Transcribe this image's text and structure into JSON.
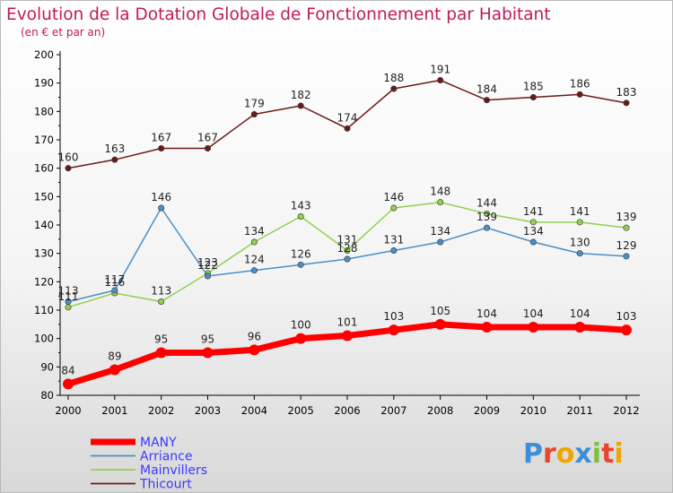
{
  "chart_data": {
    "type": "line",
    "title": "Evolution de la Dotation Globale de Fonctionnement par Habitant",
    "subtitle": "(en € et par an)",
    "x": [
      "2000",
      "2001",
      "2002",
      "2003",
      "2004",
      "2005",
      "2006",
      "2007",
      "2008",
      "2009",
      "2010",
      "2011",
      "2012"
    ],
    "ylim": [
      80,
      200
    ],
    "yticks": [
      80,
      90,
      100,
      110,
      120,
      130,
      140,
      150,
      160,
      170,
      180,
      190,
      200
    ],
    "grid": false,
    "legend_position": "bottom-left",
    "series": [
      {
        "name": "Thicourt",
        "color": "#6b1a1a",
        "width": 1.5,
        "values": [
          160,
          163,
          167,
          167,
          179,
          182,
          174,
          188,
          191,
          184,
          185,
          186,
          183
        ]
      },
      {
        "name": "Mainvillers",
        "color": "#8fd14f",
        "width": 1.5,
        "values": [
          111,
          116,
          113,
          123,
          134,
          143,
          131,
          146,
          148,
          144,
          141,
          141,
          139
        ]
      },
      {
        "name": "Arriance",
        "color": "#4a90c8",
        "width": 1.5,
        "values": [
          113,
          117,
          146,
          122,
          124,
          126,
          128,
          131,
          134,
          139,
          134,
          130,
          129
        ]
      },
      {
        "name": "MANY",
        "color": "#ff0000",
        "width": 7,
        "values": [
          84,
          89,
          95,
          95,
          96,
          100,
          101,
          103,
          105,
          104,
          104,
          104,
          103
        ]
      }
    ],
    "legend": [
      "MANY",
      "Arriance",
      "Mainvillers",
      "Thicourt"
    ]
  },
  "colors": {
    "title": "#c2185b",
    "legend_text": "#3a3aff",
    "axis": "#000000"
  },
  "logo": "Proxiti"
}
